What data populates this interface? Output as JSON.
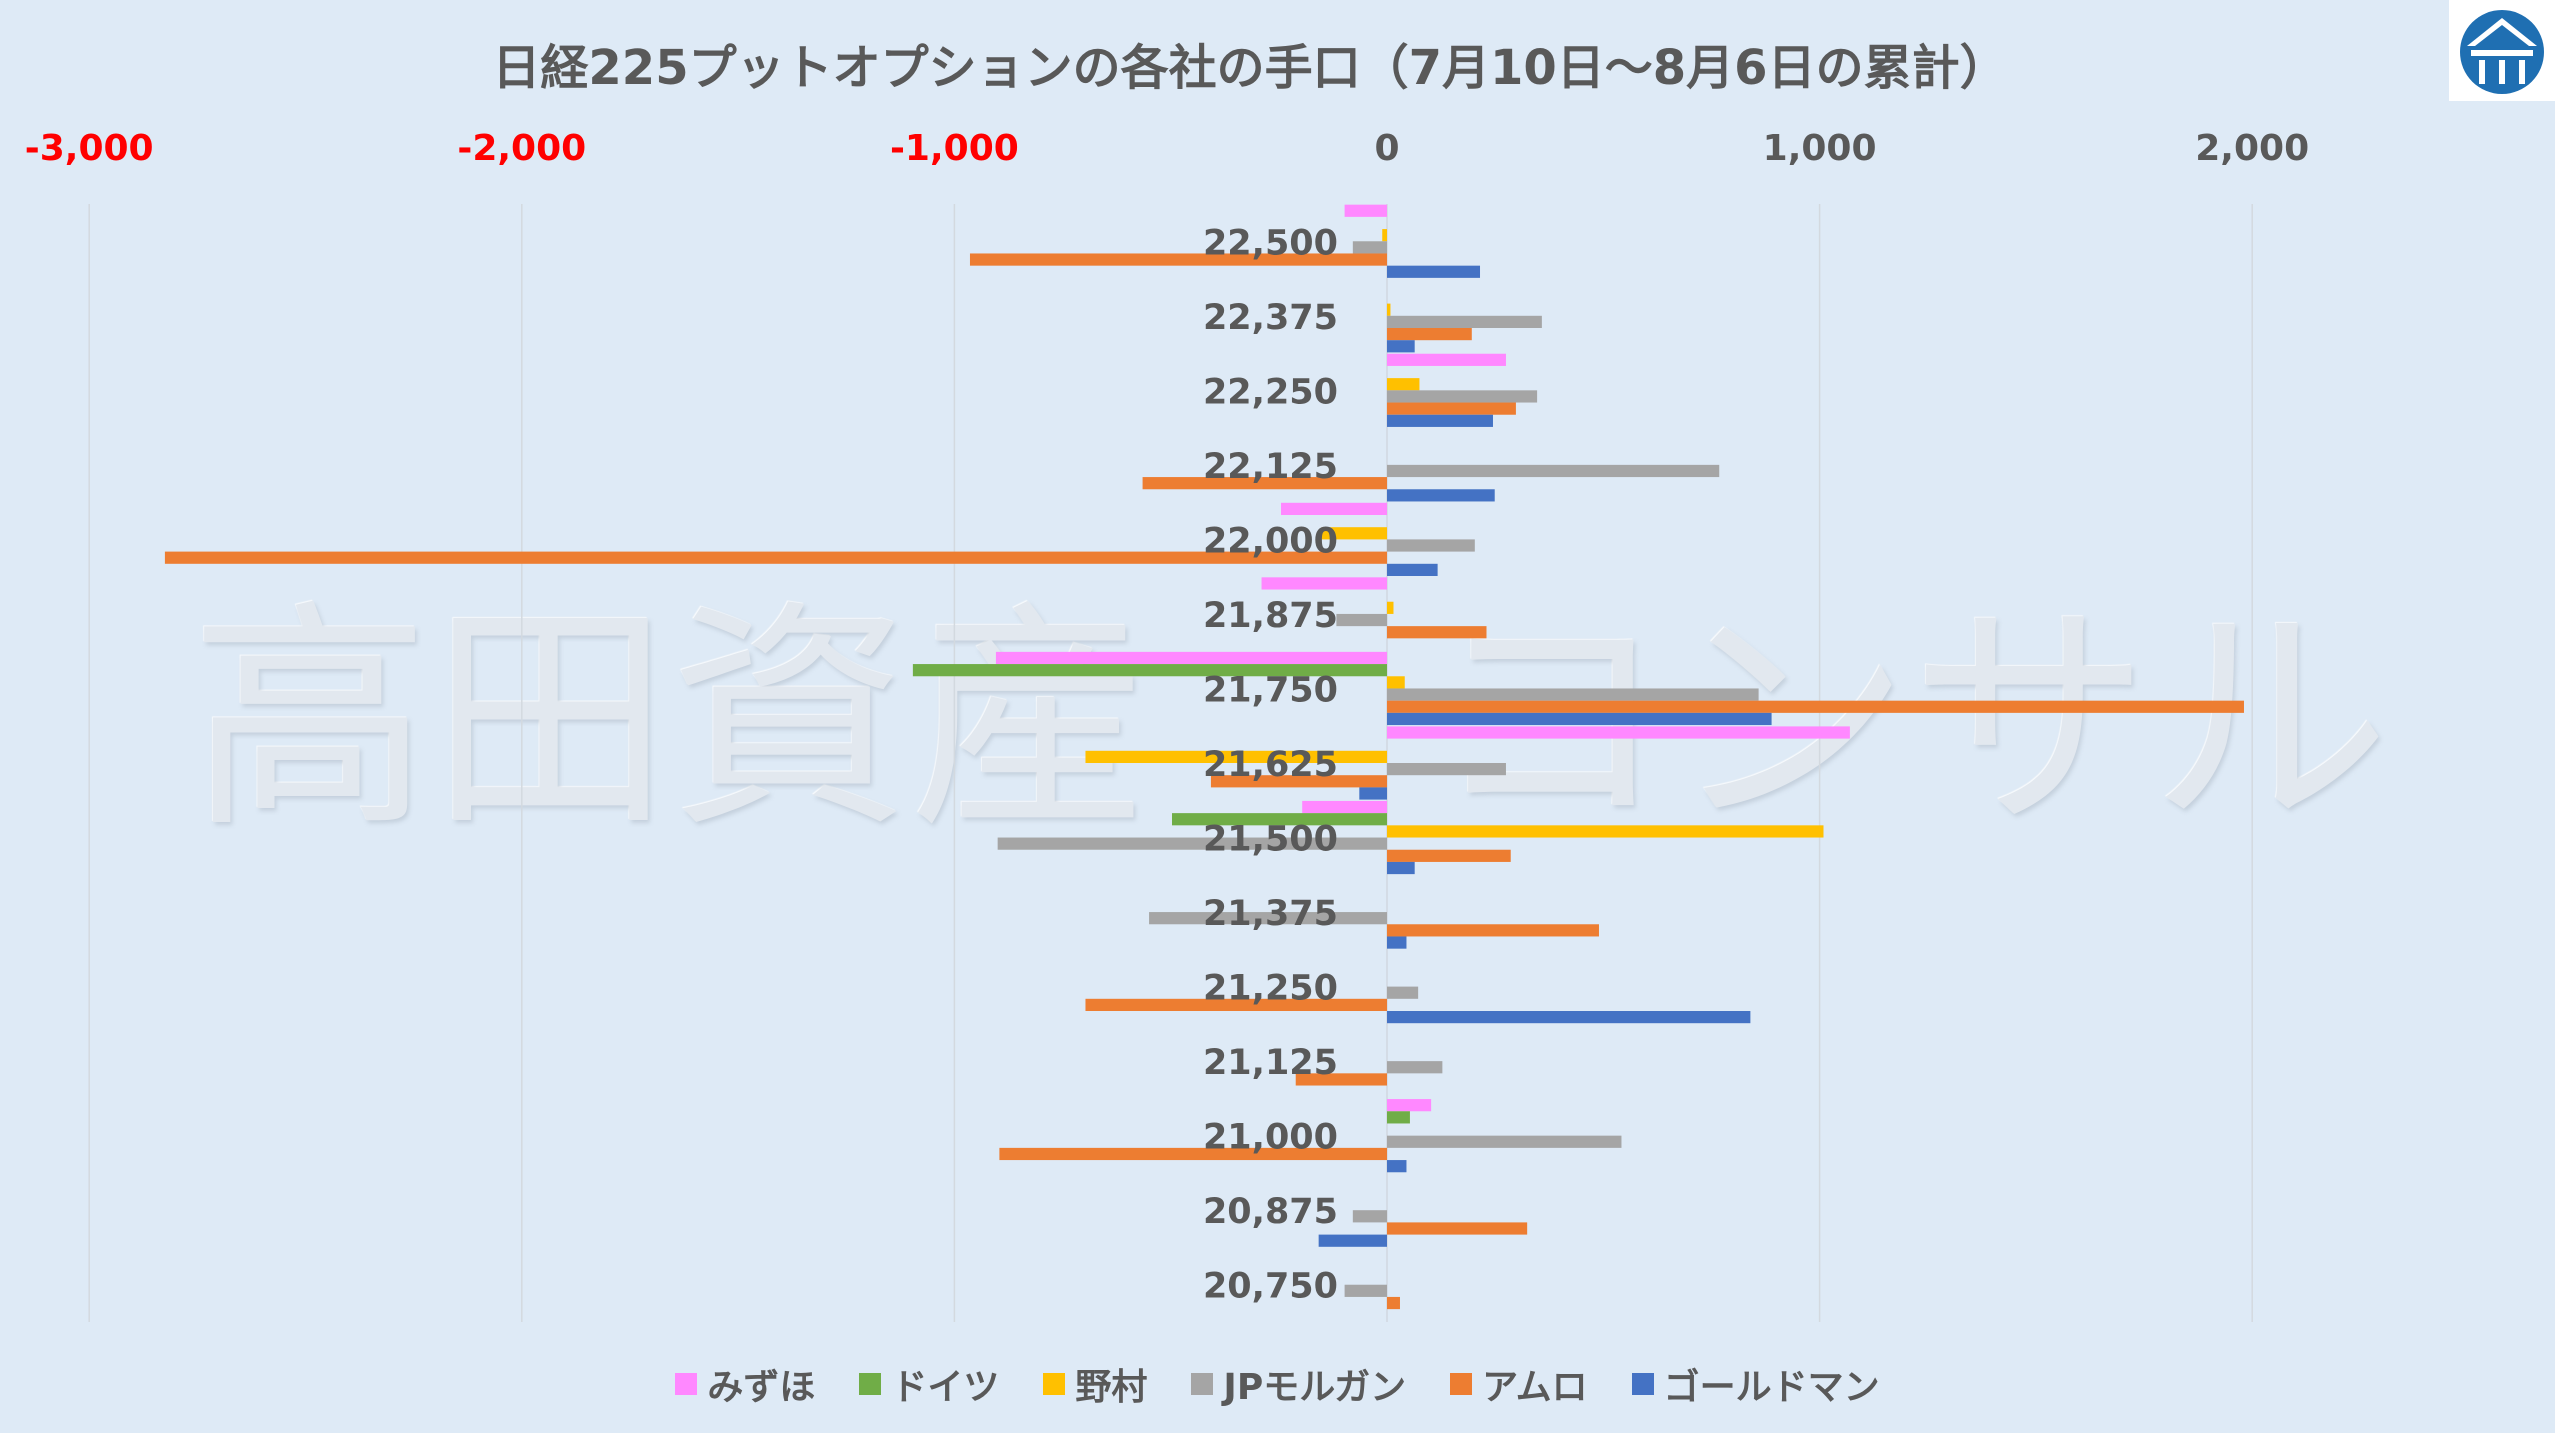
{
  "title": "日経225プットオプションの各社の手口（7月10日〜8月6日の累計）",
  "watermark": "高田資産コンサル",
  "logo": "高田資産コンサル logo",
  "chart_data": {
    "type": "bar",
    "orientation": "horizontal",
    "title": "日経225プットオプションの各社の手口（7月10日〜8月6日の累計）",
    "xlim": [
      -3000,
      2500
    ],
    "xticks": [
      -3000,
      -2000,
      -1000,
      0,
      1000,
      2000
    ],
    "xtick_labels": [
      "-3,000",
      "-2,000",
      "-1,000",
      "0",
      "1,000",
      "2,000"
    ],
    "negative_tick_color": "#ff0000",
    "grid": true,
    "legend_position": "bottom",
    "categories": [
      "22,500",
      "22,375",
      "22,250",
      "22,125",
      "22,000",
      "21,875",
      "21,750",
      "21,625",
      "21,500",
      "21,375",
      "21,250",
      "21,125",
      "21,000",
      "20,875",
      "20,750"
    ],
    "series": [
      {
        "name": "みずほ",
        "color": "#ff88ff",
        "values": [
          -98,
          0,
          275,
          0,
          -245,
          -290,
          -904,
          1070,
          -196,
          0,
          0,
          0,
          102,
          0,
          0
        ]
      },
      {
        "name": "ドイツ",
        "color": "#70ad47",
        "values": [
          0,
          0,
          0,
          0,
          0,
          0,
          -1096,
          0,
          -497,
          0,
          0,
          0,
          53,
          0,
          0
        ]
      },
      {
        "name": "野村",
        "color": "#ffc000",
        "values": [
          -11,
          8,
          75,
          0,
          -151,
          15,
          41,
          -697,
          1009,
          0,
          0,
          0,
          0,
          0,
          0
        ]
      },
      {
        "name": "JPモルガン",
        "color": "#a5a5a5",
        "values": [
          -79,
          358,
          347,
          768,
          203,
          -117,
          859,
          275,
          -900,
          -550,
          72,
          128,
          542,
          -79,
          -98
        ]
      },
      {
        "name": "アムロ",
        "color": "#ed7d31",
        "values": [
          -964,
          196,
          298,
          -565,
          -2825,
          230,
          1981,
          -407,
          286,
          490,
          -697,
          -211,
          -896,
          324,
          30
        ]
      },
      {
        "name": "ゴールドマン",
        "color": "#4472c4",
        "values": [
          215,
          64,
          245,
          249,
          117,
          0,
          889,
          -64,
          64,
          45,
          840,
          0,
          45,
          -158,
          0
        ]
      }
    ]
  }
}
